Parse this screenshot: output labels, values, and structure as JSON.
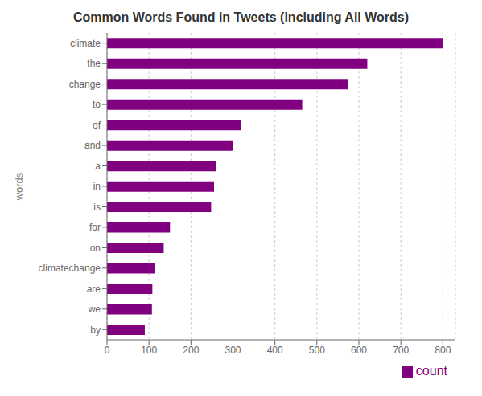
{
  "chart_data": {
    "type": "bar",
    "orientation": "horizontal",
    "title": "Common Words Found in Tweets (Including All Words)",
    "ylabel": "words",
    "categories": [
      "climate",
      "the",
      "change",
      "to",
      "of",
      "and",
      "a",
      "in",
      "is",
      "for",
      "on",
      "climatechange",
      "are",
      "we",
      "by"
    ],
    "series": [
      {
        "name": "count",
        "color": "#800080",
        "values": [
          800,
          620,
          575,
          465,
          320,
          300,
          260,
          255,
          248,
          150,
          135,
          115,
          108,
          107,
          90
        ]
      }
    ],
    "xlim": [
      0,
      830
    ],
    "xticks": [
      0,
      100,
      200,
      300,
      400,
      500,
      600,
      700,
      800
    ],
    "grid": true,
    "legend": "lower right"
  }
}
